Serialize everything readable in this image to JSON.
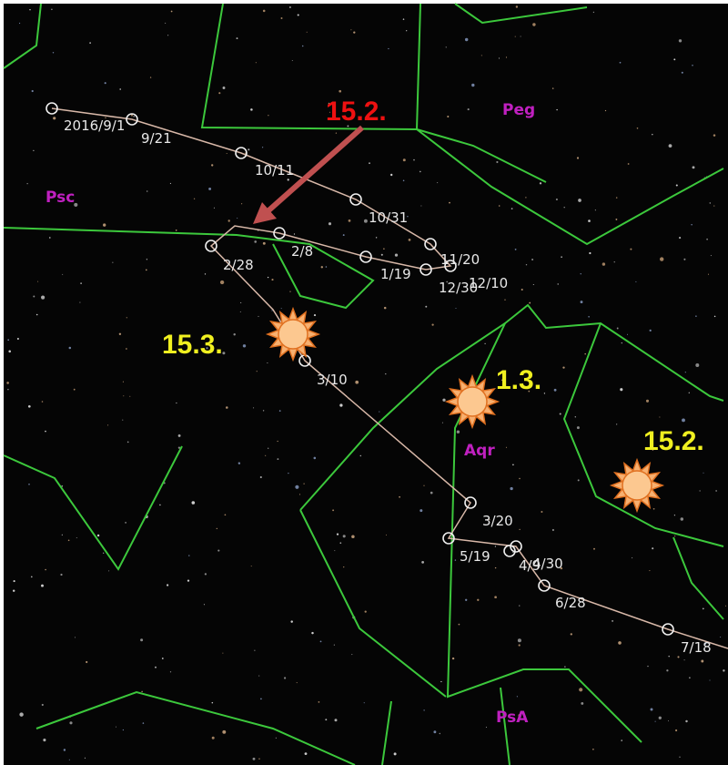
{
  "constellations": [
    "Peg",
    "Psc",
    "Aqr",
    "PsA"
  ],
  "dates": [
    "2016/9/1",
    "9/21",
    "10/11",
    "10/31",
    "11/20",
    "12/10",
    "12/30",
    "1/19",
    "2/8",
    "2/28",
    "3/10",
    "3/20",
    "4/9",
    "4/30",
    "5/19",
    "6/28",
    "7/18"
  ],
  "annotations": [
    "15.2.",
    "15.3.",
    "1.3.",
    "15.2."
  ]
}
